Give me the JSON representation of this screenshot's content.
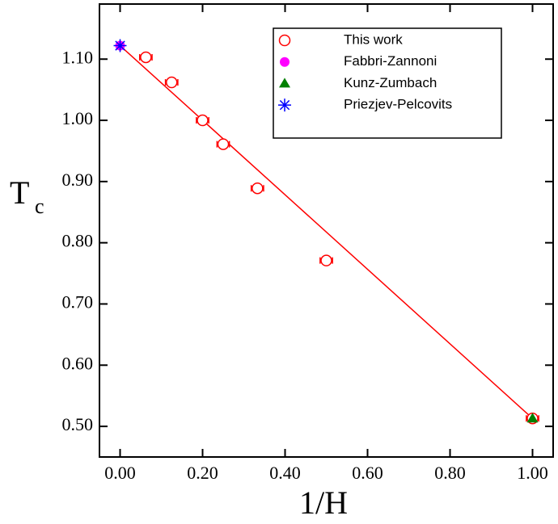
{
  "chart_data": {
    "type": "scatter",
    "xlabel": "1/H",
    "ylabel": "T",
    "ylabel_sub": "c",
    "xlim": [
      -0.05,
      1.05
    ],
    "ylim": [
      0.45,
      1.19
    ],
    "xticks": [
      {
        "value": 0,
        "label": "0.00"
      },
      {
        "value": 0.2,
        "label": "0.20"
      },
      {
        "value": 0.4,
        "label": "0.40"
      },
      {
        "value": 0.6,
        "label": "0.60"
      },
      {
        "value": 0.8,
        "label": "0.80"
      },
      {
        "value": 1,
        "label": "1.00"
      }
    ],
    "yticks": [
      {
        "value": 0.5,
        "label": "0.50"
      },
      {
        "value": 0.6,
        "label": "0.60"
      },
      {
        "value": 0.7,
        "label": "0.70"
      },
      {
        "value": 0.8,
        "label": "0.80"
      },
      {
        "value": 0.9,
        "label": "0.90"
      },
      {
        "value": 1.0,
        "label": "1.00"
      },
      {
        "value": 1.1,
        "label": "1.10"
      }
    ],
    "series": [
      {
        "name": "This work",
        "color": "#ff0000",
        "marker": "open-circle",
        "x": [
          0.0625,
          0.125,
          0.2,
          0.25,
          0.333,
          0.5,
          1.0
        ],
        "values": [
          1.103,
          1.062,
          1.0,
          0.961,
          0.889,
          0.771,
          0.513
        ],
        "xerr": [
          0.015,
          0.015,
          0.015,
          0.015,
          0.015,
          0.015,
          0.015
        ]
      },
      {
        "name": "Fabbri-Zannoni",
        "color": "#ff00ff",
        "marker": "circle",
        "x": [
          0
        ],
        "values": [
          1.122
        ]
      },
      {
        "name": "Kunz-Zumbach",
        "color": "#008000",
        "marker": "triangle",
        "x": [
          1.0
        ],
        "values": [
          0.513
        ]
      },
      {
        "name": "Priezjev-Pelcovits",
        "color": "#0000ff",
        "marker": "star",
        "x": [
          0
        ],
        "values": [
          1.122
        ]
      }
    ],
    "fit": {
      "color": "#ff0000",
      "x": [
        0,
        1.0
      ],
      "values": [
        1.122,
        0.513
      ]
    }
  }
}
